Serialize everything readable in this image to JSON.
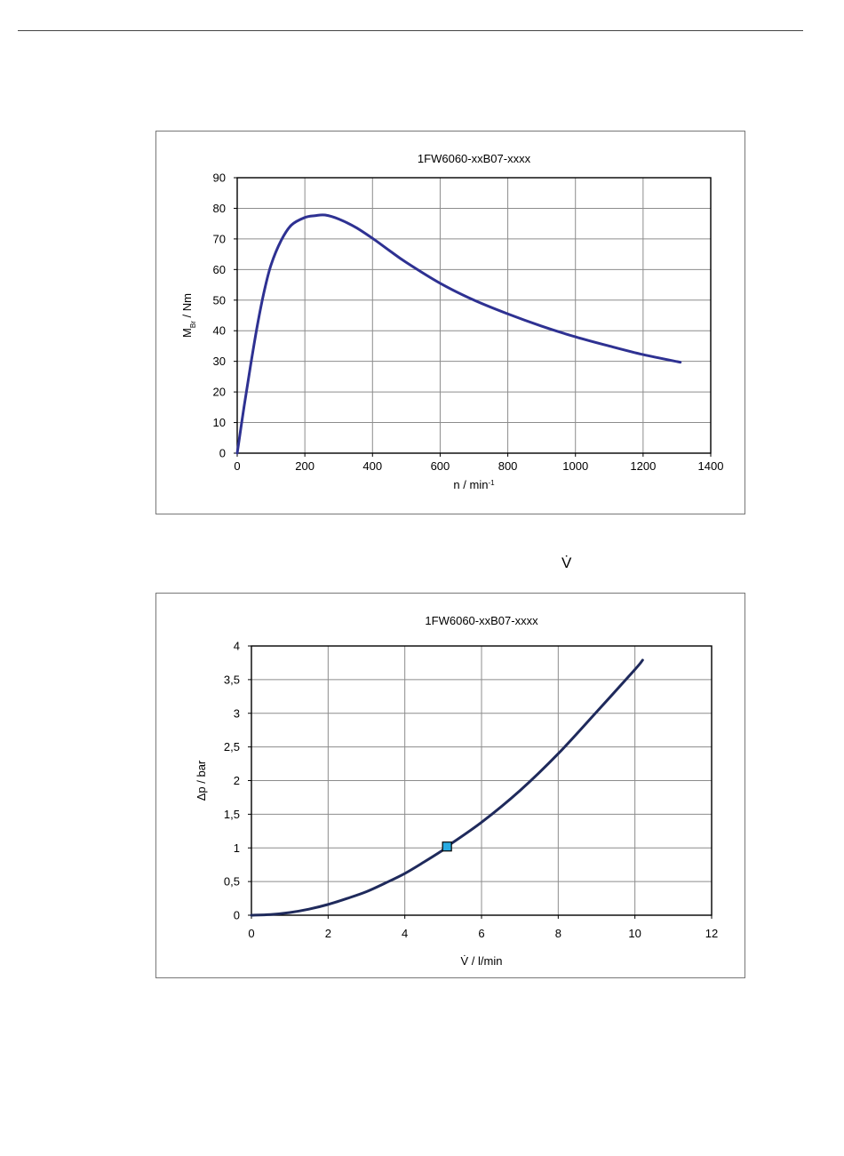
{
  "page": {
    "caption_symbol": "V̇"
  },
  "chart_data": [
    {
      "type": "line",
      "title": "1FW6060-xxB07-xxxx",
      "xlabel": "n / min",
      "xlabel_sup": "-1",
      "ylabel": "M",
      "ylabel_sub": "Br",
      "ylabel_suffix": " / Nm",
      "xlim": [
        0,
        1400
      ],
      "ylim": [
        0,
        90
      ],
      "xticks": [
        0,
        200,
        400,
        600,
        800,
        1000,
        1200,
        1400
      ],
      "yticks": [
        0,
        10,
        20,
        30,
        40,
        50,
        60,
        70,
        80,
        90
      ],
      "xtick_labels": [
        "0",
        "200",
        "400",
        "600",
        "800",
        "1000",
        "1200",
        "1400"
      ],
      "ytick_labels": [
        "0",
        "10",
        "20",
        "30",
        "40",
        "50",
        "60",
        "70",
        "80",
        "90"
      ],
      "grid": true,
      "line_color": "#2e3192",
      "series": [
        {
          "x": [
            0,
            20,
            40,
            60,
            80,
            100,
            130,
            160,
            200,
            230,
            260,
            300,
            350,
            400,
            450,
            500,
            600,
            700,
            800,
            900,
            1000,
            1100,
            1200,
            1310
          ],
          "y": [
            0,
            15,
            29,
            42,
            53,
            61.5,
            69.5,
            74.5,
            77,
            77.6,
            77.8,
            76.5,
            73.8,
            70.2,
            66.2,
            62.3,
            55.5,
            50,
            45.5,
            41.5,
            38,
            35,
            32.2,
            29.7
          ]
        }
      ]
    },
    {
      "type": "line",
      "title": "1FW6060-xxB07-xxxx",
      "xlabel": "V̇ / l/min",
      "ylabel": "Δp / bar",
      "xlim": [
        0,
        12
      ],
      "ylim": [
        0,
        4
      ],
      "xticks": [
        0,
        2,
        4,
        6,
        8,
        10,
        12
      ],
      "yticks": [
        0,
        0.5,
        1,
        1.5,
        2,
        2.5,
        3,
        3.5,
        4
      ],
      "xtick_labels": [
        "0",
        "2",
        "4",
        "6",
        "8",
        "10",
        "12"
      ],
      "ytick_labels": [
        "0",
        "0,5",
        "1",
        "1,5",
        "2",
        "2,5",
        "3",
        "3,5",
        "4"
      ],
      "grid": true,
      "line_color": "#1f2a5c",
      "marker_color": "#29abe2",
      "series": [
        {
          "x": [
            0,
            0.5,
            1,
            1.5,
            2,
            2.5,
            3,
            3.5,
            4,
            4.5,
            5,
            5.1,
            6,
            7,
            8,
            9,
            10,
            10.2
          ],
          "y": [
            0,
            0.01,
            0.04,
            0.09,
            0.16,
            0.25,
            0.35,
            0.48,
            0.62,
            0.79,
            0.97,
            1.02,
            1.38,
            1.85,
            2.4,
            3.02,
            3.65,
            3.79
          ]
        }
      ],
      "marker": {
        "x": 5.1,
        "y": 1.02
      }
    }
  ]
}
